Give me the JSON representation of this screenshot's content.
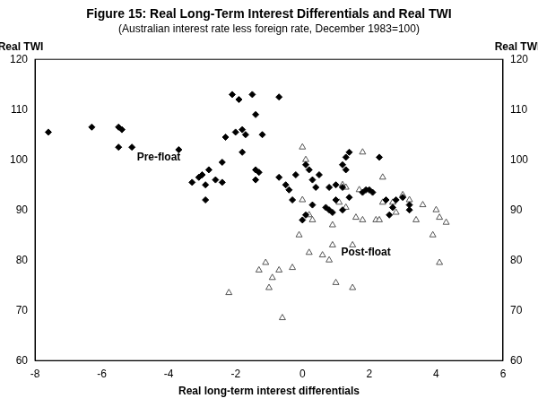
{
  "chart_data": {
    "type": "scatter",
    "title": "Figure 15: Real Long-Term Interest Differentials and Real TWI",
    "subtitle": "(Australian interest rate less foreign rate, December 1983=100)",
    "x_label": "Real long-term interest differentials",
    "y_label": "Real TWI",
    "y2_label": "Real TWI",
    "xlim": [
      -8,
      6
    ],
    "xticks": [
      -8,
      -6,
      -4,
      -2,
      0,
      2,
      4,
      6
    ],
    "ylim": [
      60,
      120
    ],
    "yticks": [
      60,
      70,
      80,
      90,
      100,
      110,
      120
    ],
    "y2lim": [
      60,
      120
    ],
    "y2ticks": [
      60,
      70,
      80,
      90,
      100,
      110,
      120
    ],
    "grid": false,
    "annotations": [
      {
        "text": "Pre-float",
        "x": -4.3,
        "y": 100.5
      },
      {
        "text": "Post-float",
        "x": 1.9,
        "y": 81.5
      }
    ],
    "series": [
      {
        "name": "Pre-float",
        "color": "#000000",
        "marker": "diamond",
        "x": [
          -7.6,
          -6.3,
          -5.5,
          -5.4,
          -5.5,
          -5.1,
          -3.7,
          -3.3,
          -3.1,
          -3.0,
          -2.9,
          -2.9,
          -2.8,
          -2.6,
          -2.4,
          -2.4,
          -2.3,
          -2.1,
          -2.0,
          -1.8,
          -1.8,
          -1.7,
          -1.9,
          -1.5,
          -1.4,
          -1.2,
          -1.4,
          -1.4,
          -1.3,
          -0.7,
          -0.7,
          -0.5,
          -0.4,
          -0.3,
          -0.2,
          0.0,
          0.1,
          0.1,
          0.2,
          0.3,
          0.5,
          0.3,
          0.7,
          0.8,
          0.8,
          0.9,
          1.0,
          1.2,
          1.2,
          1.3,
          1.2,
          1.3,
          1.4,
          1.8,
          1.9,
          2.0,
          2.1,
          2.3,
          2.5,
          2.6,
          2.7,
          2.8,
          3.0,
          3.2,
          3.2,
          1.4,
          1.0,
          0.4
        ],
        "values": [
          105.5,
          106.5,
          106.5,
          106,
          102.5,
          102.5,
          102,
          95.5,
          96.5,
          97,
          95,
          92,
          98,
          96,
          95.5,
          99.5,
          104.5,
          113,
          105.5,
          106,
          101.5,
          105,
          112,
          113,
          109,
          105,
          98,
          96,
          97.5,
          112.5,
          96.5,
          95,
          94,
          92,
          97,
          88,
          89,
          99,
          98,
          96,
          97,
          91,
          90.5,
          94.5,
          90,
          89.5,
          92,
          90,
          94.5,
          98,
          99,
          100.5,
          101.5,
          93.5,
          94,
          94,
          93.5,
          100.5,
          92,
          89,
          90.5,
          92,
          92.5,
          90,
          91,
          92.5,
          95,
          94.5
        ]
      },
      {
        "name": "Post-float",
        "color": "#555555",
        "marker": "triangle-open",
        "x": [
          -2.2,
          -1.3,
          -1.1,
          -0.9,
          -1.0,
          -0.7,
          -0.6,
          -0.3,
          -0.1,
          0.0,
          0.0,
          0.1,
          0.2,
          0.3,
          0.2,
          0.6,
          0.8,
          0.9,
          1.0,
          1.1,
          1.2,
          1.3,
          1.3,
          1.5,
          1.6,
          1.8,
          1.8,
          2.2,
          2.3,
          2.4,
          2.7,
          2.8,
          3.0,
          3.2,
          3.4,
          3.6,
          3.9,
          4.0,
          4.1,
          4.1,
          4.3,
          0.9,
          1.5,
          2.4,
          1.7
        ],
        "values": [
          73.5,
          78,
          79.5,
          76.5,
          74.5,
          78,
          68.5,
          78.5,
          85,
          102.5,
          92,
          100,
          89,
          88,
          81.5,
          81,
          80,
          83,
          75.5,
          91.5,
          95,
          94.5,
          90.5,
          74.5,
          88.5,
          101.5,
          88,
          88,
          88,
          91.5,
          91.5,
          89.5,
          93,
          92,
          88,
          91,
          85,
          90,
          79.5,
          88.5,
          87.5,
          87,
          83,
          96.5,
          94
        ]
      }
    ]
  }
}
